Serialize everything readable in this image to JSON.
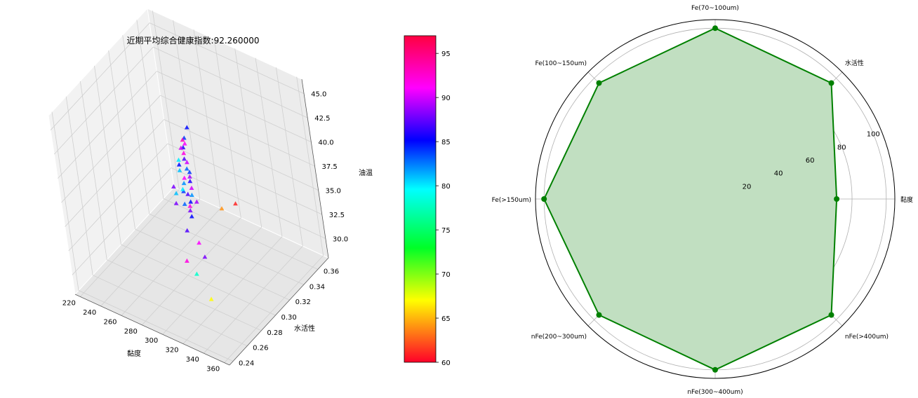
{
  "chart_data": [
    {
      "type": "scatter",
      "subtype": "scatter3d",
      "title": "近期平均综合健康指数:92.260000",
      "xlabel": "黏度",
      "ylabel": "水活性",
      "zlabel": "油温",
      "xlim": [
        215,
        365
      ],
      "ylim": [
        0.235,
        0.375
      ],
      "zlim": [
        28,
        46.5
      ],
      "x_ticks": [
        "220",
        "240",
        "260",
        "280",
        "300",
        "320",
        "340",
        "360"
      ],
      "y_ticks": [
        "0.24",
        "0.26",
        "0.28",
        "0.30",
        "0.32",
        "0.34",
        "0.36"
      ],
      "z_ticks": [
        "30.0",
        "32.5",
        "35.0",
        "37.5",
        "40.0",
        "42.5",
        "45.0"
      ],
      "marker": "triangle",
      "grid": true,
      "points": [
        {
          "x": 285,
          "y": 0.365,
          "z": 30.5,
          "c": 61
        },
        {
          "x": 300,
          "y": 0.33,
          "z": 33.5,
          "c": 64
        },
        {
          "x": 322,
          "y": 0.262,
          "z": 33.2,
          "c": 78
        },
        {
          "x": 352,
          "y": 0.24,
          "z": 33.8,
          "c": 67
        },
        {
          "x": 333,
          "y": 0.262,
          "z": 35.5,
          "c": 88
        },
        {
          "x": 324,
          "y": 0.25,
          "z": 35.6,
          "c": 92
        },
        {
          "x": 318,
          "y": 0.275,
          "z": 35.2,
          "c": 91
        },
        {
          "x": 305,
          "y": 0.278,
          "z": 35.6,
          "c": 87
        },
        {
          "x": 300,
          "y": 0.292,
          "z": 35.7,
          "c": 85
        },
        {
          "x": 296,
          "y": 0.296,
          "z": 35.8,
          "c": 88
        },
        {
          "x": 293,
          "y": 0.3,
          "z": 35.8,
          "c": 92
        },
        {
          "x": 290,
          "y": 0.305,
          "z": 35.7,
          "c": 85
        },
        {
          "x": 288,
          "y": 0.31,
          "z": 35.9,
          "c": 82
        },
        {
          "x": 286,
          "y": 0.302,
          "z": 35.5,
          "c": 83
        },
        {
          "x": 284,
          "y": 0.31,
          "z": 35.8,
          "c": 87
        },
        {
          "x": 282,
          "y": 0.318,
          "z": 35.7,
          "c": 90
        },
        {
          "x": 280,
          "y": 0.31,
          "z": 35.9,
          "c": 84
        },
        {
          "x": 279,
          "y": 0.3,
          "z": 35.4,
          "c": 88
        },
        {
          "x": 278,
          "y": 0.322,
          "z": 35.9,
          "c": 86
        },
        {
          "x": 276,
          "y": 0.314,
          "z": 35.6,
          "c": 80
        },
        {
          "x": 275,
          "y": 0.326,
          "z": 35.9,
          "c": 89
        },
        {
          "x": 273,
          "y": 0.32,
          "z": 35.6,
          "c": 82
        },
        {
          "x": 272,
          "y": 0.33,
          "z": 35.9,
          "c": 84
        },
        {
          "x": 270,
          "y": 0.325,
          "z": 35.6,
          "c": 91
        },
        {
          "x": 268,
          "y": 0.332,
          "z": 35.9,
          "c": 83
        },
        {
          "x": 266,
          "y": 0.315,
          "z": 35.3,
          "c": 88
        },
        {
          "x": 264,
          "y": 0.338,
          "z": 35.9,
          "c": 90
        },
        {
          "x": 262,
          "y": 0.33,
          "z": 35.6,
          "c": 81
        },
        {
          "x": 260,
          "y": 0.34,
          "z": 35.9,
          "c": 87
        },
        {
          "x": 258,
          "y": 0.335,
          "z": 35.6,
          "c": 85
        },
        {
          "x": 256,
          "y": 0.345,
          "z": 35.9,
          "c": 92
        },
        {
          "x": 254,
          "y": 0.34,
          "z": 35.5,
          "c": 80
        },
        {
          "x": 252,
          "y": 0.35,
          "z": 35.9,
          "c": 86
        },
        {
          "x": 250,
          "y": 0.355,
          "z": 35.8,
          "c": 91
        },
        {
          "x": 248,
          "y": 0.352,
          "z": 35.5,
          "c": 90
        },
        {
          "x": 246,
          "y": 0.36,
          "z": 35.8,
          "c": 84
        },
        {
          "x": 244,
          "y": 0.36,
          "z": 35.5,
          "c": 93
        },
        {
          "x": 242,
          "y": 0.37,
          "z": 35.9,
          "c": 85
        },
        {
          "x": 272,
          "y": 0.31,
          "z": 35.3,
          "c": 81
        },
        {
          "x": 292,
          "y": 0.31,
          "z": 35.4,
          "c": 89
        }
      ],
      "colorbar": {
        "min": 60,
        "max": 97,
        "ticks": [
          "60",
          "65",
          "70",
          "75",
          "80",
          "85",
          "90",
          "95"
        ],
        "colormap": "gist_rainbow_r"
      }
    },
    {
      "type": "radar",
      "axes": [
        "黏度",
        "水活性",
        "Fe(70~100um)",
        "Fe(100~150um)",
        "Fe(>150um)",
        "nFe(200~300um)",
        "nFe(300~400um)",
        "nFe(>400um)"
      ],
      "values": [
        71,
        96,
        100,
        96,
        100,
        96,
        100,
        96
      ],
      "rmax": 105,
      "r_ticks": [
        "20",
        "40",
        "60",
        "80",
        "100"
      ],
      "grid": true,
      "line_color": "#008000",
      "fill_color": "#c1dfc1"
    }
  ]
}
